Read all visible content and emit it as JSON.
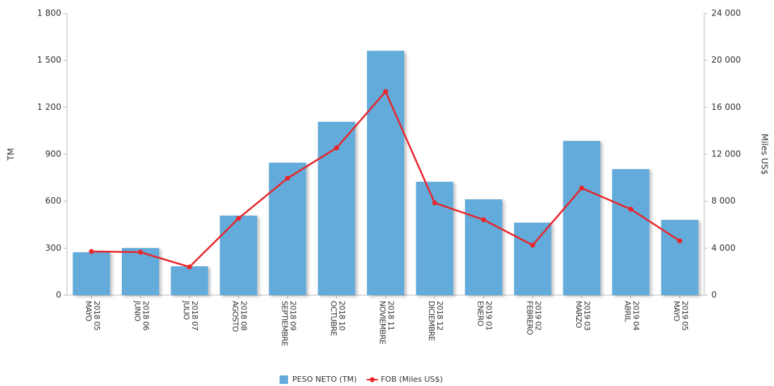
{
  "chart_data": {
    "type": "bar_line",
    "categories": [
      [
        "2018 05",
        "MAYO"
      ],
      [
        "2018 06",
        "JUNIO"
      ],
      [
        "2018 07",
        "JULIO"
      ],
      [
        "2018 08",
        "AGOSTO"
      ],
      [
        "2018 09",
        "SEPTIEMBRE"
      ],
      [
        "2018 10",
        "OCTUBRE"
      ],
      [
        "2018 11",
        "NOVIEMBRE"
      ],
      [
        "2018 12",
        "DICIEMBRE"
      ],
      [
        "2019 01",
        "ENERO"
      ],
      [
        "2019 02",
        "FEBRERO"
      ],
      [
        "2019 03",
        "MARZO"
      ],
      [
        "2019 04",
        "ABRIL"
      ],
      [
        "2019 05",
        "MAYO"
      ]
    ],
    "series": [
      {
        "name": "PESO NETO (TM)",
        "type": "bar",
        "color": "#62abda",
        "values": [
          274,
          301,
          184,
          508,
          846,
          1107,
          1561,
          724,
          612,
          463,
          985,
          805,
          481
        ]
      },
      {
        "name": "FOB (Miles US$)",
        "type": "line",
        "axis": "y2",
        "color": "#e8262b",
        "values": [
          3720,
          3660,
          2400,
          6540,
          9960,
          12540,
          17340,
          7860,
          6420,
          4260,
          9120,
          7320,
          4620
        ]
      }
    ],
    "ylabel": "TM",
    "y2label": "Miles US$",
    "ylim": [
      0,
      1800
    ],
    "yticks": [
      0,
      300,
      600,
      900,
      {
        "value": 1200,
        "label": "1 200"
      },
      {
        "value": 1500,
        "label": "1 500"
      },
      {
        "value": 1800,
        "label": "1 800"
      }
    ],
    "y2lim": [
      0,
      24000
    ],
    "y2ticks": [
      0,
      {
        "value": 4000,
        "label": "4 000"
      },
      {
        "value": 8000,
        "label": "8 000"
      },
      {
        "value": 12000,
        "label": "12 000"
      },
      {
        "value": 16000,
        "label": "16 000"
      },
      {
        "value": 20000,
        "label": "20 000"
      },
      {
        "value": 24000,
        "label": "24 000"
      }
    ],
    "grid": false,
    "legend": "bottom"
  }
}
